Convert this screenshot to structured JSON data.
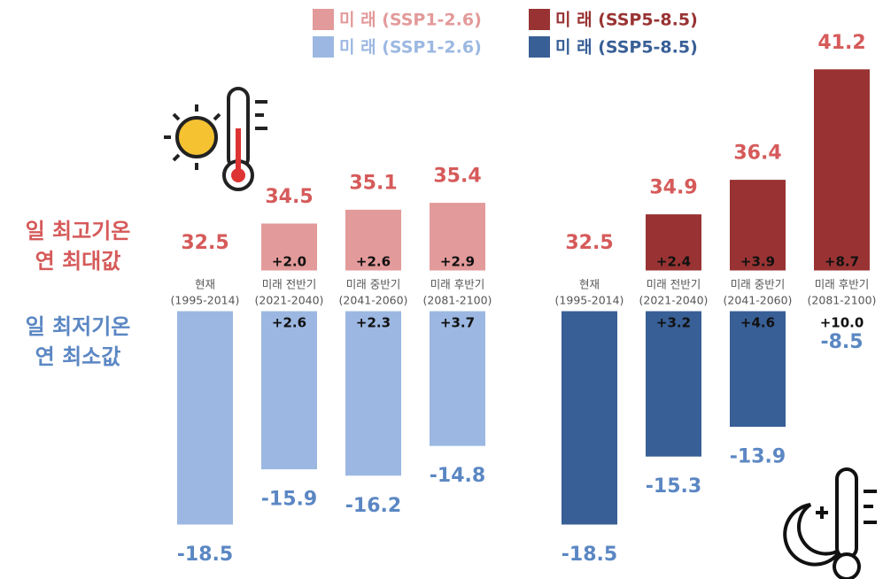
{
  "labels": {
    "max": [
      "일 최고기온",
      "연 최대값"
    ],
    "min": [
      "일 최저기온",
      "연 최소값"
    ]
  },
  "chart_data": [
    {
      "type": "bar",
      "categories": [
        "현재",
        "미래 전반기",
        "미래 중반기",
        "미래 후반기"
      ],
      "category_periods": [
        "(1995-2014)",
        "(2021-2040)",
        "(2041-2060)",
        "(2081-2100)"
      ],
      "ylim": [
        32.5,
        42
      ],
      "y2lim": [
        -8.5,
        -19
      ],
      "series": [
        {
          "name": "미 래 (SSP1-2.6)",
          "color": "#e39a9a",
          "label_color": "#d65a5a",
          "values": [
            32.5,
            34.5,
            35.1,
            35.4
          ],
          "changes": {
            "values": [
              null,
              2.0,
              2.6,
              2.9
            ],
            "value_labels": [
              null,
              "+2.0",
              "+2.6",
              "+2.9"
            ]
          }
        },
        {
          "name": "미 래 (SSP1-2.6)",
          "color": "#9cb8e2",
          "label_color": "#5b87c3",
          "axis": "y2",
          "values": [
            -18.5,
            -15.9,
            -16.2,
            -14.8
          ],
          "changes": {
            "values": [
              null,
              2.6,
              2.3,
              3.7
            ],
            "value_labels": [
              null,
              "+2.6",
              "+2.3",
              "+3.7"
            ]
          }
        }
      ]
    },
    {
      "type": "bar",
      "categories": [
        "현재",
        "미래 전반기",
        "미래 중반기",
        "미래 후반기"
      ],
      "category_periods": [
        "(1995-2014)",
        "(2021-2040)",
        "(2041-2060)",
        "(2081-2100)"
      ],
      "ylim": [
        32.5,
        42
      ],
      "y2lim": [
        -8.5,
        -19
      ],
      "series": [
        {
          "name": "미 래 (SSP5-8.5)",
          "color": "#993333",
          "label_color": "#d65a5a",
          "values": [
            32.5,
            34.9,
            36.4,
            41.2
          ],
          "changes": {
            "values": [
              null,
              2.4,
              3.9,
              8.7
            ],
            "value_labels": [
              null,
              "+2.4",
              "+3.9",
              "+8.7"
            ]
          }
        },
        {
          "name": "미 래 (SSP5-8.5)",
          "color": "#385f96",
          "label_color": "#5b87c3",
          "axis": "y2",
          "values": [
            -18.5,
            -15.3,
            -13.9,
            -8.5
          ],
          "changes": {
            "values": [
              null,
              3.2,
              4.6,
              10.0
            ],
            "value_labels": [
              null,
              "+3.2",
              "+4.6",
              "+10.0"
            ]
          }
        }
      ]
    }
  ]
}
